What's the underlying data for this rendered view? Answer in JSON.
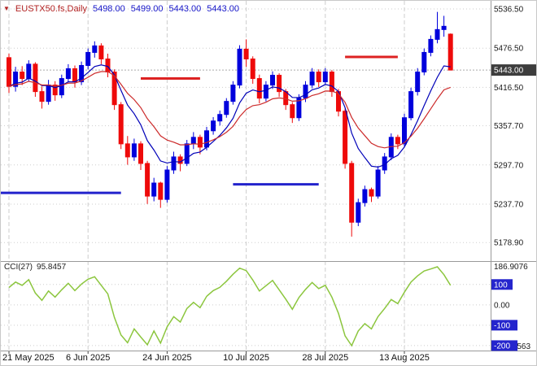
{
  "header": {
    "symbol_period": "EUSTX50.fs,Daily",
    "open": "5498.00",
    "high": "5499.00",
    "low": "5443.00",
    "close": "5443.00"
  },
  "icons": {
    "symbol_marker": "▼"
  },
  "price_axis": {
    "grid_labels": [
      "5536.50",
      "5476.50",
      "5416.50",
      "5357.70",
      "5297.70",
      "5237.70",
      "5178.90"
    ],
    "current_price": "5443.00"
  },
  "time_axis": {
    "labels": [
      {
        "text": "21 May 2025",
        "bar": 0
      },
      {
        "text": "6 Jun 2025",
        "bar": 12
      },
      {
        "text": "24 Jun 2025",
        "bar": 24
      },
      {
        "text": "10 Jul 2025",
        "bar": 36
      },
      {
        "text": "28 Jul 2025",
        "bar": 48
      },
      {
        "text": "13 Aug 2025",
        "bar": 60
      }
    ]
  },
  "indicator": {
    "name": "CCI(27)",
    "value": "95.8457",
    "scale_max": "186.9076",
    "scale_min": "-200.3563",
    "zero_label": "0.00",
    "levels": [
      "100",
      "-100",
      "-200"
    ]
  },
  "colors": {
    "bull": "#0000DC",
    "bear": "#EE0A0A",
    "ma_fast": "#0000B8",
    "ma_slow": "#CC2A2A",
    "cci_line": "#8CC63E",
    "grid": "#CDCDCD",
    "axis_text": "#1A1A1A",
    "current_price_bg": "#3D3D3D",
    "level_bg": "#2525CD",
    "separator": "#9A9A9A",
    "header_symbol": "#B22222",
    "header_quote": "#1515C8"
  },
  "chart_data": {
    "type": "candlestick",
    "symbol": "EUSTX50.fs",
    "timeframe": "Daily",
    "price_range": [
      5153,
      5549
    ],
    "dates": [
      "2025-05-21",
      "2025-05-22",
      "2025-05-23",
      "2025-05-26",
      "2025-05-27",
      "2025-05-28",
      "2025-05-29",
      "2025-05-30",
      "2025-06-02",
      "2025-06-03",
      "2025-06-04",
      "2025-06-05",
      "2025-06-06",
      "2025-06-09",
      "2025-06-10",
      "2025-06-11",
      "2025-06-12",
      "2025-06-13",
      "2025-06-16",
      "2025-06-17",
      "2025-06-18",
      "2025-06-19",
      "2025-06-20",
      "2025-06-23",
      "2025-06-24",
      "2025-06-25",
      "2025-06-26",
      "2025-06-27",
      "2025-06-30",
      "2025-07-01",
      "2025-07-02",
      "2025-07-03",
      "2025-07-04",
      "2025-07-07",
      "2025-07-08",
      "2025-07-09",
      "2025-07-10",
      "2025-07-11",
      "2025-07-14",
      "2025-07-15",
      "2025-07-16",
      "2025-07-17",
      "2025-07-18",
      "2025-07-21",
      "2025-07-22",
      "2025-07-23",
      "2025-07-24",
      "2025-07-25",
      "2025-07-28",
      "2025-07-29",
      "2025-07-30",
      "2025-07-31",
      "2025-08-01",
      "2025-08-04",
      "2025-08-05",
      "2025-08-06",
      "2025-08-07",
      "2025-08-08",
      "2025-08-11",
      "2025-08-12",
      "2025-08-13",
      "2025-08-14",
      "2025-08-15",
      "2025-08-18",
      "2025-08-19",
      "2025-08-20",
      "2025-08-21",
      "2025-08-22"
    ],
    "candles": [
      [
        5462,
        5468,
        5408,
        5418
      ],
      [
        5418,
        5448,
        5410,
        5440
      ],
      [
        5440,
        5449,
        5420,
        5430
      ],
      [
        5430,
        5458,
        5425,
        5452
      ],
      [
        5452,
        5455,
        5402,
        5410
      ],
      [
        5410,
        5418,
        5384,
        5395
      ],
      [
        5395,
        5428,
        5390,
        5420
      ],
      [
        5420,
        5426,
        5396,
        5405
      ],
      [
        5405,
        5436,
        5400,
        5430
      ],
      [
        5430,
        5452,
        5424,
        5445
      ],
      [
        5445,
        5450,
        5416,
        5425
      ],
      [
        5425,
        5456,
        5420,
        5450
      ],
      [
        5450,
        5476,
        5444,
        5470
      ],
      [
        5470,
        5487,
        5462,
        5480
      ],
      [
        5480,
        5484,
        5452,
        5460
      ],
      [
        5460,
        5468,
        5432,
        5440
      ],
      [
        5440,
        5444,
        5382,
        5390
      ],
      [
        5390,
        5394,
        5322,
        5330
      ],
      [
        5330,
        5342,
        5298,
        5310
      ],
      [
        5310,
        5338,
        5304,
        5330
      ],
      [
        5330,
        5334,
        5290,
        5300
      ],
      [
        5300,
        5304,
        5238,
        5250
      ],
      [
        5250,
        5278,
        5242,
        5270
      ],
      [
        5270,
        5272,
        5232,
        5245
      ],
      [
        5245,
        5296,
        5240,
        5290
      ],
      [
        5290,
        5318,
        5284,
        5310
      ],
      [
        5310,
        5314,
        5288,
        5300
      ],
      [
        5300,
        5336,
        5296,
        5330
      ],
      [
        5330,
        5348,
        5322,
        5340
      ],
      [
        5340,
        5344,
        5314,
        5325
      ],
      [
        5325,
        5356,
        5320,
        5350
      ],
      [
        5350,
        5371,
        5344,
        5365
      ],
      [
        5365,
        5381,
        5358,
        5375
      ],
      [
        5375,
        5400,
        5370,
        5395
      ],
      [
        5395,
        5426,
        5390,
        5420
      ],
      [
        5420,
        5481,
        5415,
        5475
      ],
      [
        5475,
        5490,
        5448,
        5460
      ],
      [
        5460,
        5464,
        5422,
        5430
      ],
      [
        5430,
        5436,
        5392,
        5400
      ],
      [
        5400,
        5426,
        5395,
        5420
      ],
      [
        5420,
        5441,
        5414,
        5435
      ],
      [
        5435,
        5438,
        5402,
        5410
      ],
      [
        5410,
        5414,
        5382,
        5390
      ],
      [
        5390,
        5394,
        5362,
        5370
      ],
      [
        5370,
        5406,
        5365,
        5400
      ],
      [
        5400,
        5426,
        5394,
        5420
      ],
      [
        5420,
        5446,
        5415,
        5440
      ],
      [
        5440,
        5444,
        5417,
        5425
      ],
      [
        5425,
        5446,
        5420,
        5440
      ],
      [
        5440,
        5443,
        5402,
        5410
      ],
      [
        5410,
        5414,
        5372,
        5380
      ],
      [
        5380,
        5384,
        5292,
        5300
      ],
      [
        5300,
        5304,
        5188,
        5210
      ],
      [
        5210,
        5246,
        5204,
        5240
      ],
      [
        5240,
        5266,
        5234,
        5260
      ],
      [
        5260,
        5263,
        5241,
        5250
      ],
      [
        5250,
        5296,
        5246,
        5290
      ],
      [
        5290,
        5316,
        5284,
        5310
      ],
      [
        5310,
        5346,
        5305,
        5340
      ],
      [
        5340,
        5344,
        5322,
        5330
      ],
      [
        5330,
        5376,
        5326,
        5370
      ],
      [
        5370,
        5416,
        5366,
        5410
      ],
      [
        5410,
        5446,
        5404,
        5440
      ],
      [
        5440,
        5476,
        5435,
        5470
      ],
      [
        5470,
        5496,
        5464,
        5490
      ],
      [
        5490,
        5532,
        5484,
        5505
      ],
      [
        5505,
        5526,
        5494,
        5510
      ],
      [
        5498,
        5499,
        5443,
        5443
      ]
    ],
    "cci": [
      85,
      112,
      96,
      124,
      58,
      22,
      68,
      38,
      74,
      106,
      70,
      102,
      126,
      138,
      96,
      54,
      -62,
      -148,
      -186,
      -118,
      -158,
      -196,
      -128,
      -188,
      -108,
      -58,
      -84,
      -18,
      12,
      -14,
      42,
      70,
      86,
      116,
      150,
      180,
      168,
      122,
      68,
      94,
      120,
      74,
      28,
      -22,
      36,
      76,
      110,
      80,
      96,
      38,
      -42,
      -152,
      -200.3563,
      -128,
      -92,
      -118,
      -58,
      -18,
      26,
      6,
      62,
      112,
      142,
      166,
      176,
      186.9076,
      148,
      95.8457
    ],
    "ma_fast": {
      "period": 8,
      "type": "ema"
    },
    "ma_slow": {
      "period": 15,
      "type": "ema"
    },
    "hlines": [
      {
        "price": 5255,
        "from_bar": -1,
        "to_bar": 17,
        "color": "#2222CC",
        "width": 3
      },
      {
        "price": 5430,
        "from_bar": 20,
        "to_bar": 29,
        "color": "#DD2222",
        "width": 3
      },
      {
        "price": 5268,
        "from_bar": 34,
        "to_bar": 47,
        "color": "#2222CC",
        "width": 3
      },
      {
        "price": 5463,
        "from_bar": 51,
        "to_bar": 59,
        "color": "#DD2222",
        "width": 3
      }
    ]
  }
}
